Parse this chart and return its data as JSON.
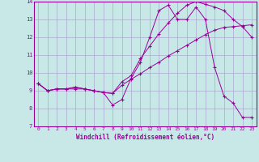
{
  "xlabel": "Windchill (Refroidissement éolien,°C)",
  "bg_color": "#c8e8e8",
  "line_color": "#990099",
  "grid_color": "#aaaacc",
  "xlim": [
    -0.5,
    23.5
  ],
  "ylim": [
    7,
    14
  ],
  "xticks": [
    0,
    1,
    2,
    3,
    4,
    5,
    6,
    7,
    8,
    9,
    10,
    11,
    12,
    13,
    14,
    15,
    16,
    17,
    18,
    19,
    20,
    21,
    22,
    23
  ],
  "yticks": [
    7,
    8,
    9,
    10,
    11,
    12,
    13,
    14
  ],
  "line1_x": [
    0,
    1,
    2,
    3,
    4,
    5,
    6,
    7,
    8,
    9,
    10,
    11,
    12,
    13,
    14,
    15,
    16,
    17,
    18,
    19,
    20,
    21,
    22,
    23
  ],
  "line1_y": [
    9.4,
    9.0,
    9.1,
    9.1,
    9.2,
    9.1,
    9.0,
    8.9,
    8.2,
    8.5,
    9.7,
    10.6,
    12.0,
    13.5,
    13.8,
    13.0,
    13.0,
    13.7,
    13.0,
    10.3,
    8.7,
    8.3,
    7.5,
    7.5
  ],
  "line2_x": [
    0,
    1,
    2,
    3,
    4,
    5,
    6,
    7,
    8,
    9,
    10,
    11,
    12,
    13,
    14,
    15,
    16,
    17,
    18,
    19,
    20,
    21,
    22,
    23
  ],
  "line2_y": [
    9.4,
    9.0,
    9.1,
    9.1,
    9.1,
    9.1,
    9.0,
    8.9,
    8.85,
    9.3,
    9.65,
    9.95,
    10.3,
    10.6,
    10.95,
    11.25,
    11.55,
    11.85,
    12.15,
    12.4,
    12.55,
    12.6,
    12.65,
    12.7
  ],
  "line3_x": [
    0,
    1,
    2,
    3,
    4,
    5,
    6,
    7,
    8,
    9,
    10,
    11,
    12,
    13,
    14,
    15,
    16,
    17,
    18,
    19,
    20,
    21,
    22,
    23
  ],
  "line3_y": [
    9.4,
    9.0,
    9.1,
    9.1,
    9.2,
    9.1,
    9.0,
    8.9,
    8.85,
    9.5,
    9.85,
    10.8,
    11.5,
    12.2,
    12.8,
    13.35,
    13.8,
    14.0,
    13.85,
    13.7,
    13.5,
    13.0,
    12.6,
    12.0
  ]
}
